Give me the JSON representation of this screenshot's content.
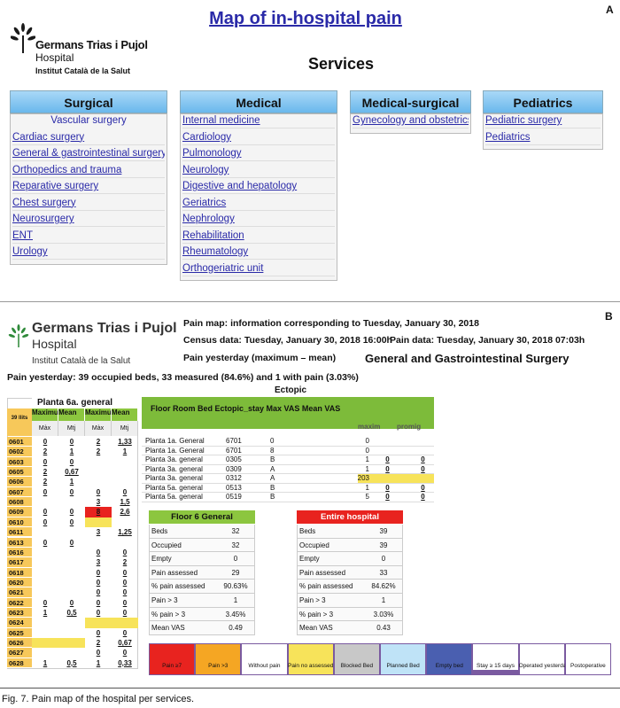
{
  "panel_a": {
    "label": "A",
    "title": "Map of in-hospital pain",
    "logo": {
      "name": "Germans Trias i Pujol",
      "sub": "Hospital",
      "org": "Institut Català de la Salut"
    },
    "heading": "Services",
    "columns": [
      {
        "title": "Surgical",
        "intro": "Vascular surgery",
        "items": [
          "Cardiac surgery",
          "General & gastrointestinal surgery",
          "Orthopedics and trauma",
          "Reparative surgery",
          "Chest surgery",
          "Neurosurgery",
          "ENT",
          "Urology"
        ]
      },
      {
        "title": "Medical",
        "items": [
          "Internal medicine",
          "Cardiology",
          "Pulmonology",
          "Neurology",
          "Digestive and hepatology",
          "Geriatrics",
          "Nephrology",
          "Rehabilitation",
          "Rheumatology",
          "Orthogeriatric unit"
        ]
      },
      {
        "title": "Medical-surgical",
        "items": [
          "Gynecology and obstetrics"
        ]
      },
      {
        "title": "Pediatrics",
        "items": [
          "Pediatric surgery",
          "Pediatrics"
        ]
      }
    ]
  },
  "panel_b": {
    "label": "B",
    "logo": {
      "name": "Germans Trias i Pujol",
      "sub": "Hospital",
      "org": "Institut Català de la Salut"
    },
    "info": [
      "Pain map: information corresponding to Tuesday, January 30, 2018",
      "Census data: Tuesday, January 30, 2018 16:00h",
      "Pain data: Tuesday, January 30, 2018 07:03h",
      "Pain yesterday (maximum – mean)"
    ],
    "service": "General and Gastrointestinal Surgery",
    "summary": "Pain yesterday: 39 occupied beds, 33 measured (84.6%) and 1 with pain (3.03%)",
    "ectopic_label": "Ectopic",
    "floor_table": {
      "title": "Planta 6a. general",
      "beds": "39 llits",
      "headers": [
        "Maximum",
        "Mean",
        "Maximum",
        "Mean"
      ],
      "subheaders": [
        "Màx",
        "Mtj",
        "Màx",
        "Mtj"
      ],
      "rows": [
        {
          "bed": "0601",
          "cells": [
            "0",
            "0",
            "2",
            "1,33"
          ]
        },
        {
          "bed": "0602",
          "cells": [
            "2",
            "1",
            "2",
            "1"
          ]
        },
        {
          "bed": "0603",
          "cells": [
            "0",
            "0",
            null,
            null
          ]
        },
        {
          "bed": "0605",
          "cells": [
            "2",
            "0,67",
            null,
            null
          ]
        },
        {
          "bed": "0606",
          "cells": [
            "2",
            "1",
            null,
            null
          ]
        },
        {
          "bed": "0607",
          "cells": [
            "0",
            "0",
            "0",
            "0"
          ]
        },
        {
          "bed": "0608",
          "cells": [
            null,
            null,
            "3",
            "1,5"
          ]
        },
        {
          "bed": "0609",
          "cells": [
            "0",
            "0",
            "8",
            "2,6"
          ],
          "fills": [
            null,
            null,
            "#e8231f",
            null
          ]
        },
        {
          "bed": "0610",
          "cells": [
            "0",
            "0",
            null,
            null
          ],
          "fills": [
            null,
            null,
            "#f7e35a",
            null
          ]
        },
        {
          "bed": "0611",
          "cells": [
            null,
            null,
            "3",
            "1,25"
          ]
        },
        {
          "bed": "0613",
          "cells": [
            "0",
            "0",
            null,
            null
          ]
        },
        {
          "bed": "0616",
          "cells": [
            null,
            null,
            "0",
            "0"
          ]
        },
        {
          "bed": "0617",
          "cells": [
            null,
            null,
            "3",
            "2"
          ]
        },
        {
          "bed": "0618",
          "cells": [
            null,
            null,
            "0",
            "0"
          ]
        },
        {
          "bed": "0620",
          "cells": [
            null,
            null,
            "0",
            "0"
          ]
        },
        {
          "bed": "0621",
          "cells": [
            null,
            null,
            "0",
            "0"
          ]
        },
        {
          "bed": "0622",
          "cells": [
            "0",
            "0",
            "0",
            "0"
          ]
        },
        {
          "bed": "0623",
          "cells": [
            "1",
            "0,5",
            "0",
            "0"
          ]
        },
        {
          "bed": "0624",
          "cells": [
            null,
            null,
            null,
            null
          ],
          "fills": [
            null,
            null,
            "#f7e35a",
            "#f7e35a"
          ]
        },
        {
          "bed": "0625",
          "cells": [
            null,
            null,
            "0",
            "0"
          ]
        },
        {
          "bed": "0626",
          "cells": [
            null,
            null,
            "2",
            "0,67"
          ],
          "fills": [
            "#f7e35a",
            "#f7e35a",
            null,
            null
          ]
        },
        {
          "bed": "0627",
          "cells": [
            null,
            null,
            "0",
            "0"
          ]
        },
        {
          "bed": "0628",
          "cells": [
            "1",
            "0,5",
            "1",
            "0,33"
          ]
        }
      ]
    },
    "ectopic_table": {
      "header": "Floor Room Bed Ectopic_stay Max VAS Mean VAS",
      "subheaders": [
        "maxim",
        "promig"
      ],
      "rows": [
        [
          "Planta 1a. General",
          "6701",
          "0",
          "0",
          null,
          null
        ],
        [
          "Planta 1a. General",
          "6701",
          "8",
          "0",
          null,
          null
        ],
        [
          "Planta 3a. general",
          "0305",
          "B",
          "1",
          "0",
          "0"
        ],
        [
          "Planta 3a. general",
          "0309",
          "A",
          "1",
          "0",
          "0"
        ],
        [
          "Planta 3a. general",
          "0312",
          "A",
          "203",
          null,
          null
        ],
        [
          "Planta 5a. general",
          "0513",
          "B",
          "1",
          "0",
          "0"
        ],
        [
          "Planta 5a. general",
          "0519",
          "B",
          "5",
          "0",
          "0"
        ]
      ]
    },
    "stats": [
      {
        "title": "Floor 6 General",
        "color": "#8cc63f",
        "rows": [
          [
            "Beds",
            "32"
          ],
          [
            "Occupied",
            "32"
          ],
          [
            "Empty",
            "0"
          ],
          [
            "Pain assessed",
            "29"
          ],
          [
            "% pain assessed",
            "90.63%"
          ],
          [
            "Pain > 3",
            "1"
          ],
          [
            "% pain > 3",
            "3.45%"
          ],
          [
            "Mean VAS",
            "0.49"
          ]
        ]
      },
      {
        "title": "Entire hospital",
        "color": "#e8231f",
        "rows": [
          [
            "Beds",
            "39"
          ],
          [
            "Occupied",
            "39"
          ],
          [
            "Empty",
            "0"
          ],
          [
            "Pain assessed",
            "33"
          ],
          [
            "% pain assessed",
            "84.62%"
          ],
          [
            "Pain > 3",
            "1"
          ],
          [
            "% pain > 3",
            "3.03%"
          ],
          [
            "Mean VAS",
            "0.43"
          ]
        ]
      }
    ],
    "legend": [
      {
        "label": "Pain ≥7",
        "color": "#e8231f"
      },
      {
        "label": "Pain >3",
        "color": "#f5a623"
      },
      {
        "label": "Without pain",
        "color": "#ffffff"
      },
      {
        "label": "Pain no assessed",
        "color": "#f7e35a"
      },
      {
        "label": "Blocked Bed",
        "color": "#c8c8c8"
      },
      {
        "label": "Planned Bed",
        "color": "#bfe3f7"
      },
      {
        "label": "Empty bed",
        "color": "#4a5fb0"
      },
      {
        "label": "Stay ≥ 15 days",
        "color": "#ffffff"
      },
      {
        "label": "Operated yesterday",
        "color": "#ffffff"
      },
      {
        "label": "Postoperative",
        "color": "#ffffff"
      }
    ]
  },
  "caption": "Fig. 7. Pain map of the hospital per services."
}
